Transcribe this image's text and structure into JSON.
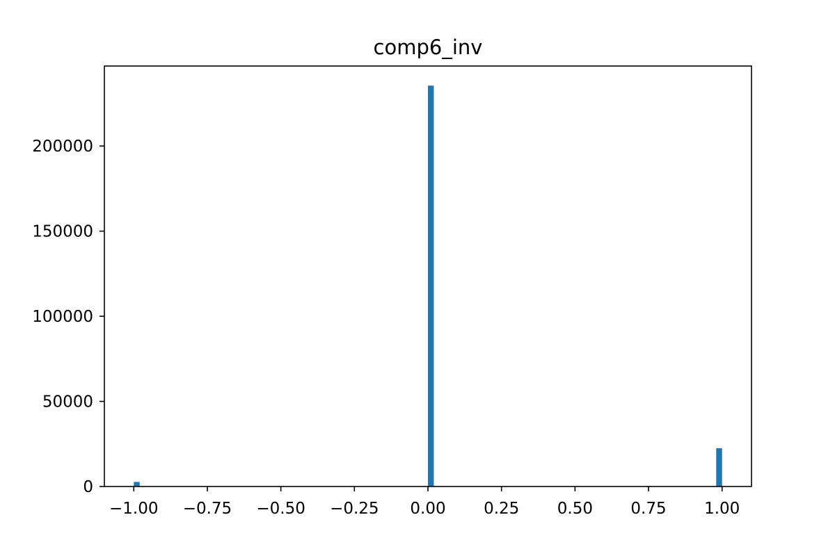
{
  "chart_data": {
    "type": "bar",
    "title": "comp6_inv",
    "xlabel": "",
    "ylabel": "",
    "xlim": [
      -1.1,
      1.1
    ],
    "ylim": [
      0,
      247000
    ],
    "x_ticks": [
      {
        "value": -1.0,
        "label": "−1.00"
      },
      {
        "value": -0.75,
        "label": "−0.75"
      },
      {
        "value": -0.5,
        "label": "−0.50"
      },
      {
        "value": -0.25,
        "label": "−0.25"
      },
      {
        "value": 0.0,
        "label": "0.00"
      },
      {
        "value": 0.25,
        "label": "0.25"
      },
      {
        "value": 0.5,
        "label": "0.50"
      },
      {
        "value": 0.75,
        "label": "0.75"
      },
      {
        "value": 1.0,
        "label": "1.00"
      }
    ],
    "y_ticks": [
      {
        "value": 0,
        "label": "0"
      },
      {
        "value": 50000,
        "label": "50000"
      },
      {
        "value": 100000,
        "label": "100000"
      },
      {
        "value": 150000,
        "label": "150000"
      },
      {
        "value": 200000,
        "label": "200000"
      }
    ],
    "bin_width": 0.02,
    "bars": [
      {
        "x_start": -1.0,
        "x_end": -0.98,
        "value": 2700
      },
      {
        "x_start": 0.0,
        "x_end": 0.02,
        "value": 235500
      },
      {
        "x_start": 0.98,
        "x_end": 1.0,
        "value": 22500
      }
    ],
    "bar_color": "#1f77b4",
    "grid": false
  }
}
